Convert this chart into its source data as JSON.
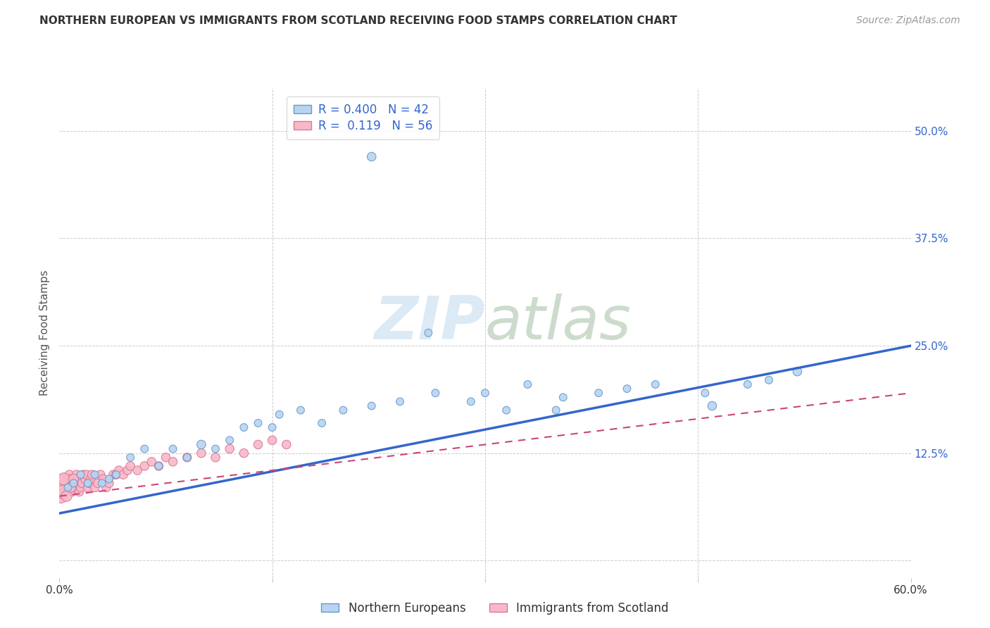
{
  "title": "NORTHERN EUROPEAN VS IMMIGRANTS FROM SCOTLAND RECEIVING FOOD STAMPS CORRELATION CHART",
  "source": "Source: ZipAtlas.com",
  "ylabel": "Receiving Food Stamps",
  "xlim": [
    0.0,
    0.6
  ],
  "ylim": [
    -0.02,
    0.55
  ],
  "ytick_positions": [
    0.0,
    0.125,
    0.25,
    0.375,
    0.5
  ],
  "ytick_labels": [
    "",
    "12.5%",
    "25.0%",
    "37.5%",
    "50.0%"
  ],
  "grid_color": "#cccccc",
  "background_color": "#ffffff",
  "series1_name": "Northern Europeans",
  "series1_color": "#b8d4f0",
  "series1_edge_color": "#6699cc",
  "series1_line_color": "#3366cc",
  "series1_R": 0.4,
  "series1_N": 42,
  "series2_name": "Immigrants from Scotland",
  "series2_color": "#f8b8c8",
  "series2_edge_color": "#dd7799",
  "series2_line_color": "#cc4477",
  "series2_R": 0.119,
  "series2_N": 56,
  "blue_line_x0": 0.0,
  "blue_line_y0": 0.055,
  "blue_line_x1": 0.6,
  "blue_line_y1": 0.25,
  "pink_line_x0": 0.0,
  "pink_line_y0": 0.075,
  "pink_line_x1": 0.6,
  "pink_line_y1": 0.195,
  "s1x": [
    0.006,
    0.01,
    0.015,
    0.02,
    0.025,
    0.03,
    0.035,
    0.04,
    0.05,
    0.06,
    0.07,
    0.08,
    0.09,
    0.1,
    0.11,
    0.12,
    0.13,
    0.14,
    0.155,
    0.17,
    0.185,
    0.2,
    0.22,
    0.24,
    0.265,
    0.29,
    0.3,
    0.315,
    0.33,
    0.355,
    0.38,
    0.4,
    0.42,
    0.455,
    0.485,
    0.5,
    0.26,
    0.35,
    0.52,
    0.46,
    0.15,
    0.22
  ],
  "s1y": [
    0.085,
    0.09,
    0.1,
    0.09,
    0.1,
    0.09,
    0.095,
    0.1,
    0.12,
    0.13,
    0.11,
    0.13,
    0.12,
    0.135,
    0.13,
    0.14,
    0.155,
    0.16,
    0.17,
    0.175,
    0.16,
    0.175,
    0.18,
    0.185,
    0.195,
    0.185,
    0.195,
    0.175,
    0.205,
    0.19,
    0.195,
    0.2,
    0.205,
    0.195,
    0.205,
    0.21,
    0.265,
    0.175,
    0.22,
    0.18,
    0.155,
    0.47
  ],
  "s1_sizes": [
    60,
    60,
    60,
    60,
    60,
    60,
    60,
    60,
    60,
    60,
    60,
    60,
    60,
    80,
    60,
    60,
    60,
    60,
    60,
    60,
    60,
    60,
    60,
    60,
    60,
    60,
    60,
    60,
    60,
    60,
    60,
    60,
    60,
    60,
    60,
    60,
    60,
    60,
    80,
    80,
    60,
    80
  ],
  "s2x": [
    0.001,
    0.002,
    0.003,
    0.004,
    0.005,
    0.006,
    0.007,
    0.008,
    0.009,
    0.01,
    0.011,
    0.012,
    0.013,
    0.014,
    0.015,
    0.016,
    0.017,
    0.018,
    0.019,
    0.02,
    0.021,
    0.022,
    0.023,
    0.025,
    0.027,
    0.029,
    0.031,
    0.033,
    0.035,
    0.038,
    0.04,
    0.042,
    0.045,
    0.048,
    0.05,
    0.055,
    0.06,
    0.065,
    0.07,
    0.075,
    0.08,
    0.09,
    0.1,
    0.11,
    0.12,
    0.13,
    0.14,
    0.15,
    0.16,
    0.0,
    0.001,
    0.002,
    0.003,
    0.005,
    0.008,
    0.01
  ],
  "s2y": [
    0.09,
    0.085,
    0.095,
    0.08,
    0.09,
    0.085,
    0.1,
    0.095,
    0.08,
    0.085,
    0.09,
    0.1,
    0.095,
    0.08,
    0.085,
    0.09,
    0.1,
    0.095,
    0.1,
    0.085,
    0.09,
    0.095,
    0.1,
    0.085,
    0.09,
    0.1,
    0.095,
    0.085,
    0.09,
    0.1,
    0.1,
    0.105,
    0.1,
    0.105,
    0.11,
    0.105,
    0.11,
    0.115,
    0.11,
    0.12,
    0.115,
    0.12,
    0.125,
    0.12,
    0.13,
    0.125,
    0.135,
    0.14,
    0.135,
    0.09,
    0.075,
    0.08,
    0.095,
    0.075,
    0.085,
    0.095
  ],
  "s2_sizes": [
    200,
    150,
    120,
    100,
    100,
    100,
    80,
    80,
    80,
    80,
    80,
    80,
    80,
    80,
    80,
    80,
    80,
    80,
    80,
    80,
    80,
    80,
    80,
    80,
    80,
    80,
    80,
    80,
    80,
    80,
    80,
    80,
    80,
    80,
    80,
    80,
    80,
    80,
    80,
    80,
    80,
    80,
    80,
    80,
    80,
    80,
    80,
    80,
    80,
    250,
    200,
    180,
    150,
    120,
    100,
    100
  ]
}
